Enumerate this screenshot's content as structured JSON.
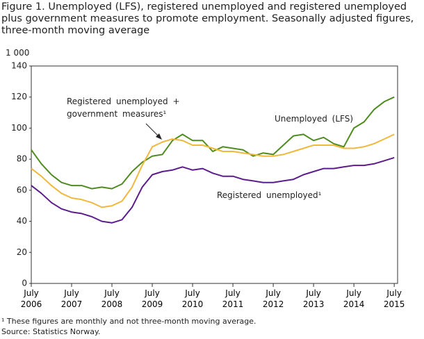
{
  "chart_data": {
    "type": "line",
    "title": "Figure 1. Unemployed (LFS), registered unemployed and registered unemployed plus government measures to promote employment. Seasonally adjusted figures, three-month moving average",
    "y_unit": "1 000",
    "x": [
      "2006-07",
      "2006-10",
      "2007-01",
      "2007-04",
      "2007-07",
      "2007-10",
      "2008-01",
      "2008-04",
      "2008-07",
      "2008-10",
      "2009-01",
      "2009-04",
      "2009-07",
      "2009-10",
      "2010-01",
      "2010-04",
      "2010-07",
      "2010-10",
      "2011-01",
      "2011-04",
      "2011-07",
      "2011-10",
      "2012-01",
      "2012-04",
      "2012-07",
      "2012-10",
      "2013-01",
      "2013-04",
      "2013-07",
      "2013-10",
      "2014-01",
      "2014-04",
      "2014-07",
      "2014-10",
      "2015-01",
      "2015-04",
      "2015-07"
    ],
    "series": [
      {
        "name": "Unemployed (LFS)",
        "color": "#4e8c1e",
        "values": [
          86,
          77,
          70,
          65,
          63,
          63,
          61,
          62,
          61,
          64,
          72,
          78,
          82,
          83,
          92,
          96,
          92,
          92,
          85,
          88,
          87,
          86,
          82,
          84,
          83,
          89,
          95,
          96,
          92,
          94,
          90,
          88,
          100,
          104,
          112,
          117,
          120
        ]
      },
      {
        "name": "Registered unemployed + government measures¹",
        "color": "#f0b83c",
        "values": [
          74,
          69,
          63,
          58,
          55,
          54,
          52,
          49,
          50,
          53,
          62,
          76,
          88,
          91,
          93,
          92,
          89,
          89,
          87,
          85,
          85,
          84,
          83,
          82,
          82,
          83,
          85,
          87,
          89,
          89,
          89,
          87,
          87,
          88,
          90,
          93,
          96
        ]
      },
      {
        "name": "Registered unemployed¹",
        "color": "#5c1c8c",
        "values": [
          63,
          58,
          52,
          48,
          46,
          45,
          43,
          40,
          39,
          41,
          49,
          62,
          70,
          72,
          73,
          75,
          73,
          74,
          71,
          69,
          69,
          67,
          66,
          65,
          65,
          66,
          67,
          70,
          72,
          74,
          74,
          75,
          76,
          76,
          77,
          79,
          81
        ]
      }
    ],
    "xlim": [
      "2006-07",
      "2015-08"
    ],
    "xticks": [
      {
        "value": "2006-07",
        "label": "July 2006"
      },
      {
        "value": "2007-07",
        "label": "July 2007"
      },
      {
        "value": "2008-07",
        "label": "July 2008"
      },
      {
        "value": "2009-07",
        "label": "July 2009"
      },
      {
        "value": "2010-07",
        "label": "July 2010"
      },
      {
        "value": "2011-07",
        "label": "July 2011"
      },
      {
        "value": "2012-07",
        "label": "July 2012"
      },
      {
        "value": "2013-07",
        "label": "July 2013"
      },
      {
        "value": "2014-07",
        "label": "July 2014"
      },
      {
        "value": "2015-07",
        "label": "July 2015"
      }
    ],
    "ylim": [
      0,
      140
    ],
    "yticks": [
      0,
      20,
      40,
      60,
      80,
      100,
      120,
      140
    ],
    "grid": false,
    "footnote": "¹ These figures are monthly and not three-month moving average.",
    "source": "Source: Statistics Norway."
  }
}
